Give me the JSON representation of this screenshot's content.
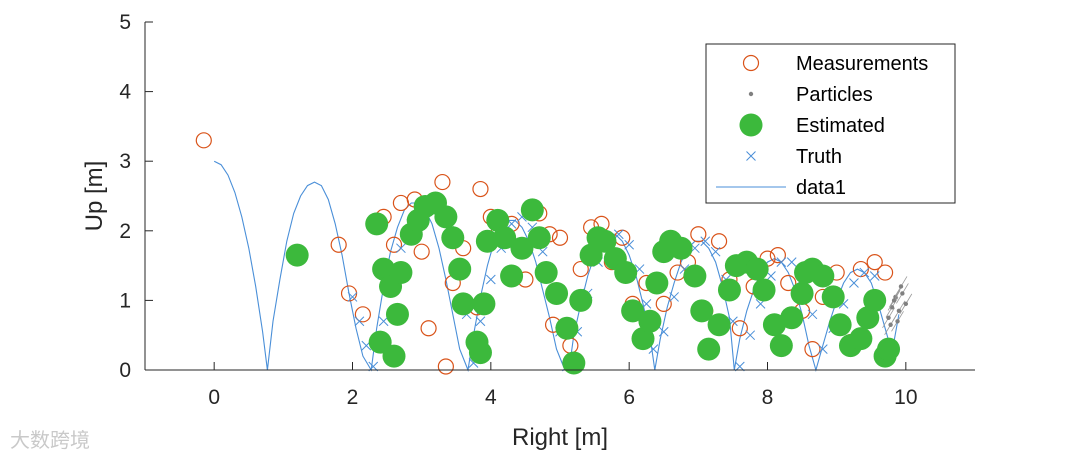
{
  "chart_data": {
    "type": "scatter",
    "title": "",
    "xlabel": "Right [m]",
    "ylabel": "Up [m]",
    "xlim": [
      -1,
      11
    ],
    "ylim": [
      0,
      5
    ],
    "xticks": [
      0,
      2,
      4,
      6,
      8,
      10
    ],
    "yticks": [
      0,
      1,
      2,
      3,
      4,
      5
    ],
    "xtick_labels": [
      "0",
      "2",
      "4",
      "6",
      "8",
      "10"
    ],
    "ytick_labels": [
      "0",
      "1",
      "2",
      "3",
      "4",
      "5"
    ],
    "grid": false,
    "legend_position": "top-right",
    "legend": [
      "Measurements",
      "Particles",
      "Estimated",
      "Truth",
      "data1"
    ],
    "series": [
      {
        "name": "Measurements",
        "marker": "open-circle",
        "color": "#d95319",
        "x": [
          -0.15,
          1.8,
          1.95,
          2.15,
          2.45,
          2.6,
          2.7,
          2.9,
          3.0,
          3.1,
          3.3,
          3.35,
          3.45,
          3.6,
          3.8,
          3.85,
          4.0,
          4.1,
          4.3,
          4.5,
          4.7,
          4.85,
          4.9,
          5.0,
          5.15,
          5.3,
          5.45,
          5.6,
          5.75,
          5.9,
          6.05,
          6.25,
          6.5,
          6.7,
          6.85,
          7.0,
          7.1,
          7.3,
          7.45,
          7.6,
          7.8,
          8.0,
          8.15,
          8.3,
          8.5,
          8.65,
          8.8,
          9.0,
          9.2,
          9.35,
          9.55,
          9.7
        ],
        "y": [
          3.3,
          1.8,
          1.1,
          0.8,
          2.2,
          1.8,
          2.4,
          2.45,
          1.7,
          0.6,
          2.7,
          0.05,
          1.25,
          1.75,
          0.9,
          2.6,
          2.2,
          1.95,
          2.1,
          1.3,
          2.25,
          1.95,
          0.65,
          1.9,
          0.35,
          1.45,
          2.05,
          2.1,
          1.55,
          1.9,
          0.95,
          1.25,
          0.95,
          1.4,
          1.55,
          1.95,
          0.85,
          1.85,
          1.3,
          0.6,
          1.2,
          1.6,
          1.65,
          1.25,
          0.85,
          0.3,
          1.05,
          1.4,
          0.4,
          1.45,
          1.55,
          1.4
        ]
      },
      {
        "name": "Particles",
        "marker": "dot",
        "color": "#808080",
        "x": [
          9.75,
          9.8,
          9.85,
          9.9,
          9.95,
          10.0,
          9.78,
          9.88,
          9.93,
          9.83
        ],
        "y": [
          0.75,
          0.9,
          1.05,
          0.85,
          1.1,
          0.95,
          0.65,
          0.7,
          1.2,
          1.0
        ]
      },
      {
        "name": "Estimated",
        "marker": "filled-circle",
        "color": "#3cb93c",
        "x": [
          1.2,
          2.35,
          2.4,
          2.45,
          2.55,
          2.6,
          2.65,
          2.7,
          2.85,
          2.95,
          3.05,
          3.2,
          3.35,
          3.45,
          3.55,
          3.6,
          3.8,
          3.85,
          3.9,
          3.95,
          4.1,
          4.2,
          4.3,
          4.45,
          4.6,
          4.7,
          4.8,
          4.95,
          5.1,
          5.2,
          5.3,
          5.45,
          5.55,
          5.65,
          5.8,
          5.95,
          6.05,
          6.2,
          6.3,
          6.4,
          6.5,
          6.6,
          6.75,
          6.95,
          7.05,
          7.15,
          7.3,
          7.45,
          7.55,
          7.7,
          7.85,
          7.95,
          8.1,
          8.2,
          8.35,
          8.5,
          8.55,
          8.65,
          8.8,
          8.95,
          9.05,
          9.2,
          9.35,
          9.45,
          9.55,
          9.7,
          9.75
        ],
        "y": [
          1.65,
          2.1,
          0.4,
          1.45,
          1.2,
          0.2,
          0.8,
          1.4,
          1.95,
          2.15,
          2.35,
          2.4,
          2.2,
          1.9,
          1.45,
          0.95,
          0.4,
          0.25,
          0.95,
          1.85,
          2.15,
          1.9,
          1.35,
          1.75,
          2.3,
          1.9,
          1.4,
          1.1,
          0.6,
          0.1,
          1.0,
          1.65,
          1.9,
          1.85,
          1.6,
          1.4,
          0.85,
          0.45,
          0.7,
          1.25,
          1.7,
          1.85,
          1.75,
          1.35,
          0.85,
          0.3,
          0.65,
          1.15,
          1.5,
          1.55,
          1.45,
          1.15,
          0.65,
          0.35,
          0.75,
          1.1,
          1.4,
          1.45,
          1.35,
          1.05,
          0.65,
          0.35,
          0.45,
          0.75,
          1.0,
          0.2,
          0.3
        ]
      },
      {
        "name": "Truth",
        "marker": "x",
        "color": "#4a8fd8",
        "x": [
          2.0,
          2.1,
          2.2,
          2.3,
          2.45,
          2.55,
          2.7,
          2.85,
          3.0,
          3.2,
          3.4,
          3.55,
          3.65,
          3.75,
          3.85,
          4.0,
          4.15,
          4.3,
          4.45,
          4.6,
          4.75,
          4.9,
          5.0,
          5.1,
          5.25,
          5.4,
          5.55,
          5.7,
          5.85,
          6.0,
          6.15,
          6.25,
          6.35,
          6.5,
          6.65,
          6.8,
          6.95,
          7.1,
          7.25,
          7.4,
          7.5,
          7.6,
          7.75,
          7.9,
          8.05,
          8.2,
          8.35,
          8.5,
          8.65,
          8.8,
          8.95,
          9.1,
          9.25,
          9.4,
          9.55,
          9.7
        ],
        "y": [
          1.05,
          0.7,
          0.35,
          0.05,
          0.7,
          1.25,
          1.75,
          2.1,
          2.35,
          2.35,
          2.0,
          1.5,
          0.8,
          0.1,
          0.7,
          1.3,
          1.75,
          2.1,
          2.2,
          2.05,
          1.7,
          1.15,
          0.55,
          0.05,
          0.55,
          1.1,
          1.55,
          1.85,
          1.95,
          1.8,
          1.45,
          0.95,
          0.3,
          0.55,
          1.05,
          1.45,
          1.75,
          1.85,
          1.7,
          1.3,
          0.7,
          0.05,
          0.5,
          0.95,
          1.35,
          1.55,
          1.55,
          1.3,
          0.8,
          0.3,
          0.6,
          0.95,
          1.25,
          1.4,
          1.35,
          0.2
        ]
      },
      {
        "name": "data1",
        "marker": "line",
        "color": "#4a8fd8",
        "x": [
          0.0,
          0.1,
          0.2,
          0.3,
          0.4,
          0.5,
          0.6,
          0.7,
          0.77,
          0.85,
          0.95,
          1.05,
          1.15,
          1.25,
          1.35,
          1.45,
          1.55,
          1.65,
          1.75,
          1.85,
          1.95,
          2.05,
          2.15,
          2.27,
          2.35,
          2.45,
          2.55,
          2.65,
          2.75,
          2.85,
          2.95,
          3.05,
          3.15,
          3.25,
          3.35,
          3.45,
          3.55,
          3.67,
          3.75,
          3.85,
          3.95,
          4.05,
          4.15,
          4.25,
          4.35,
          4.45,
          4.55,
          4.65,
          4.75,
          4.85,
          4.95,
          5.05,
          5.13,
          5.2,
          5.3,
          5.4,
          5.5,
          5.6,
          5.7,
          5.8,
          5.9,
          6.0,
          6.1,
          6.2,
          6.3,
          6.37,
          6.45,
          6.55,
          6.65,
          6.75,
          6.85,
          6.95,
          7.05,
          7.15,
          7.25,
          7.35,
          7.45,
          7.52,
          7.6,
          7.7,
          7.8,
          7.9,
          8.0,
          8.1,
          8.2,
          8.3,
          8.4,
          8.5,
          8.6,
          8.7,
          8.8,
          8.9,
          9.0,
          9.1,
          9.2,
          9.3,
          9.4,
          9.5,
          9.6,
          9.7,
          9.8,
          9.9
        ],
        "y": [
          3.0,
          2.95,
          2.8,
          2.55,
          2.2,
          1.75,
          1.2,
          0.55,
          0.0,
          0.7,
          1.3,
          1.85,
          2.25,
          2.5,
          2.65,
          2.7,
          2.65,
          2.45,
          2.1,
          1.65,
          1.1,
          0.6,
          0.2,
          0.0,
          0.6,
          1.2,
          1.7,
          2.05,
          2.3,
          2.4,
          2.4,
          2.3,
          2.1,
          1.75,
          1.3,
          0.8,
          0.3,
          0.0,
          0.5,
          1.05,
          1.5,
          1.85,
          2.05,
          2.15,
          2.15,
          2.05,
          1.85,
          1.55,
          1.15,
          0.75,
          0.3,
          0.05,
          0.0,
          0.5,
          0.95,
          1.35,
          1.65,
          1.85,
          1.95,
          1.95,
          1.85,
          1.65,
          1.35,
          0.95,
          0.5,
          0.0,
          0.45,
          0.9,
          1.25,
          1.55,
          1.75,
          1.85,
          1.85,
          1.75,
          1.55,
          1.2,
          0.75,
          0.0,
          0.45,
          0.85,
          1.15,
          1.4,
          1.55,
          1.6,
          1.55,
          1.4,
          1.15,
          0.8,
          0.35,
          0.0,
          0.35,
          0.7,
          1.0,
          1.25,
          1.4,
          1.45,
          1.4,
          1.25,
          0.95,
          0.6,
          0.25,
          0.8
        ]
      }
    ]
  },
  "watermark": "大数跨境"
}
